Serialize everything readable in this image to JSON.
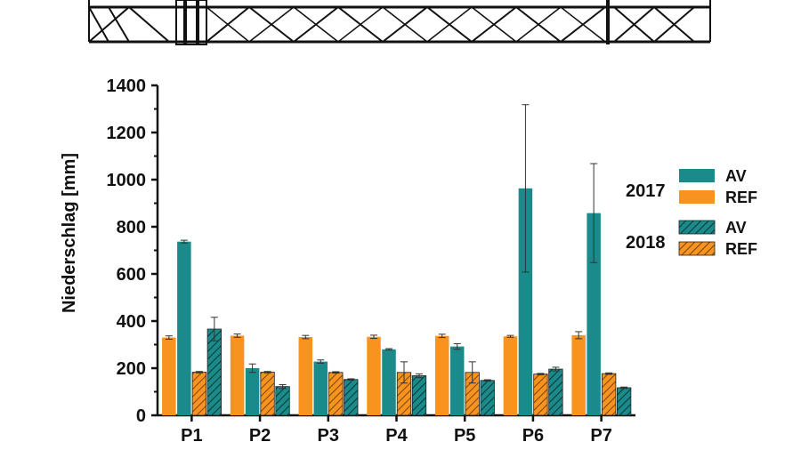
{
  "chart_data": {
    "type": "bar",
    "ylabel": "Niederschlag [mm]",
    "ylim": [
      0,
      1400
    ],
    "yticks": [
      0,
      200,
      400,
      600,
      800,
      1000,
      1200,
      1400
    ],
    "categories": [
      "P1",
      "P2",
      "P3",
      "P4",
      "P5",
      "P6",
      "P7"
    ],
    "series": [
      {
        "name": "REF",
        "year": "2017",
        "color": "#f7931e",
        "hatched": false,
        "values": [
          330,
          338,
          332,
          333,
          337,
          335,
          340
        ],
        "errors": [
          7,
          7,
          7,
          7,
          7,
          4,
          15
        ]
      },
      {
        "name": "AV",
        "year": "2017",
        "color": "#1a8a8a",
        "hatched": false,
        "values": [
          737,
          200,
          228,
          280,
          292,
          963,
          858
        ],
        "errors": [
          6,
          18,
          7,
          3,
          12,
          355,
          210
        ]
      },
      {
        "name": "REF",
        "year": "2018",
        "color": "#f7931e",
        "hatched": true,
        "values": [
          183,
          183,
          182,
          182,
          182,
          175,
          177
        ],
        "errors": [
          3,
          3,
          3,
          45,
          45,
          3,
          3
        ]
      },
      {
        "name": "AV",
        "year": "2018",
        "color": "#1a8a8a",
        "hatched": true,
        "values": [
          366,
          122,
          152,
          168,
          148,
          196,
          117
        ],
        "errors": [
          50,
          8,
          3,
          8,
          3,
          8,
          3
        ]
      }
    ],
    "legend": {
      "placement": "right",
      "groups": [
        {
          "year": "2017",
          "entries": [
            {
              "label": "AV",
              "color": "#1a8a8a",
              "hatched": false
            },
            {
              "label": "REF",
              "color": "#f7931e",
              "hatched": false
            }
          ]
        },
        {
          "year": "2018",
          "entries": [
            {
              "label": "AV",
              "color": "#1a8a8a",
              "hatched": true
            },
            {
              "label": "REF",
              "color": "#f7931e",
              "hatched": true
            }
          ]
        }
      ]
    },
    "grid": false
  },
  "header_illustration": "truss-structure"
}
